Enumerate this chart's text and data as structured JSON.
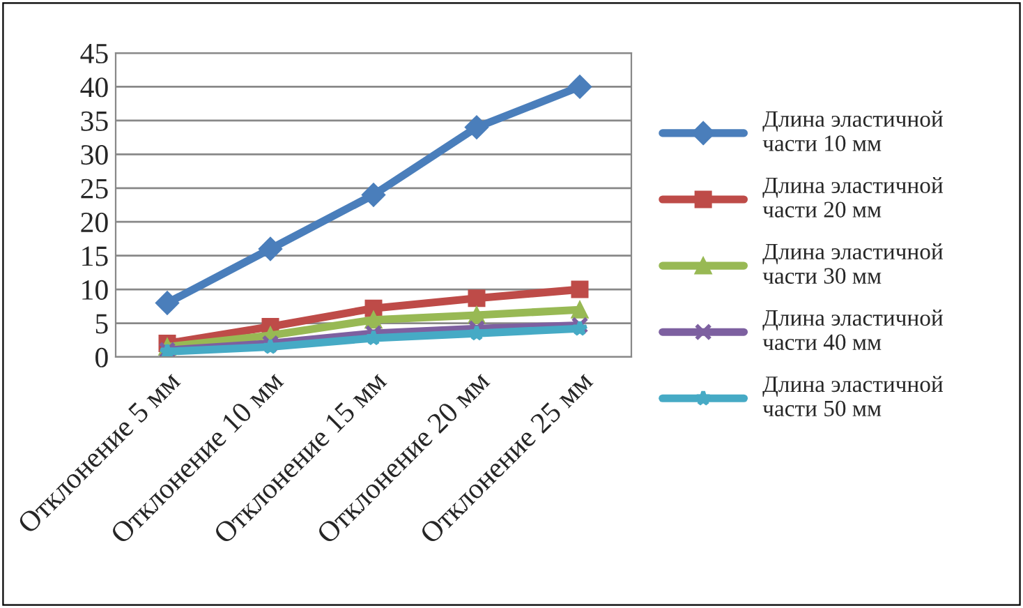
{
  "chart_data": {
    "type": "line",
    "categories": [
      "Отклонение 5 мм",
      "Отклонение 10 мм",
      "Отклонение 15 мм",
      "Отклонение 20 мм",
      "Отклонение 25 мм"
    ],
    "series": [
      {
        "name": "Длина эластичной части 10 мм",
        "color": "#4a7ebb",
        "marker": "diamond",
        "values": [
          8,
          16,
          24,
          34,
          40
        ]
      },
      {
        "name": "Длина эластичной части 20 мм",
        "color": "#be4b48",
        "marker": "square",
        "values": [
          2,
          4.5,
          7.2,
          8.7,
          10
        ]
      },
      {
        "name": "Длина эластичной части 30 мм",
        "color": "#98b954",
        "marker": "triangle",
        "values": [
          1.5,
          3.2,
          5.5,
          6.2,
          7
        ]
      },
      {
        "name": "Длина эластичной части 40 мм",
        "color": "#7d60a0",
        "marker": "cross",
        "values": [
          1,
          2,
          3.5,
          4.2,
          4.7
        ]
      },
      {
        "name": "Длина эластичной части 50 мм",
        "color": "#46aac5",
        "marker": "star",
        "values": [
          0.8,
          1.5,
          2.8,
          3.5,
          4.2
        ]
      }
    ],
    "ylim": [
      0,
      45
    ],
    "yticks": [
      0,
      5,
      10,
      15,
      20,
      25,
      30,
      35,
      40,
      45
    ],
    "grid": "y",
    "legend": "right",
    "line_style": "solid"
  }
}
